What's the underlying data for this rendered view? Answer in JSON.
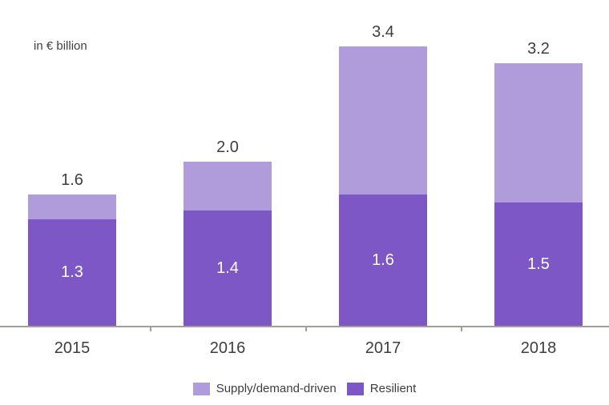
{
  "colors": {
    "supply": "#b19cdb",
    "resilient": "#7d57c6",
    "axis": "#a69d97",
    "text": "#3e3e40",
    "bar_value_text": "#ffffff",
    "background": "#ffffff"
  },
  "chart_data": {
    "type": "bar",
    "stacked": true,
    "unit_label": "in € billion",
    "categories": [
      "2015",
      "2016",
      "2017",
      "2018"
    ],
    "series": [
      {
        "name": "Resilient",
        "values": [
          1.3,
          1.4,
          1.6,
          1.5
        ],
        "color": "#7d57c6"
      },
      {
        "name": "Supply/demand-driven",
        "values": [
          0.3,
          0.6,
          1.8,
          1.7
        ],
        "color": "#b19cdb"
      }
    ],
    "totals": [
      1.6,
      2.0,
      3.4,
      3.2
    ],
    "total_labels": [
      "1.6",
      "2.0",
      "3.4",
      "3.2"
    ],
    "resilient_labels": [
      "1.3",
      "1.4",
      "1.6",
      "1.5"
    ],
    "ylim": [
      0,
      3.5
    ],
    "grid": false,
    "y_axis_shown": false,
    "legend_position": "bottom"
  },
  "legend": {
    "items": [
      {
        "label": "Supply/demand-driven",
        "color": "#b19cdb"
      },
      {
        "label": "Resilient",
        "color": "#7d57c6"
      }
    ]
  }
}
